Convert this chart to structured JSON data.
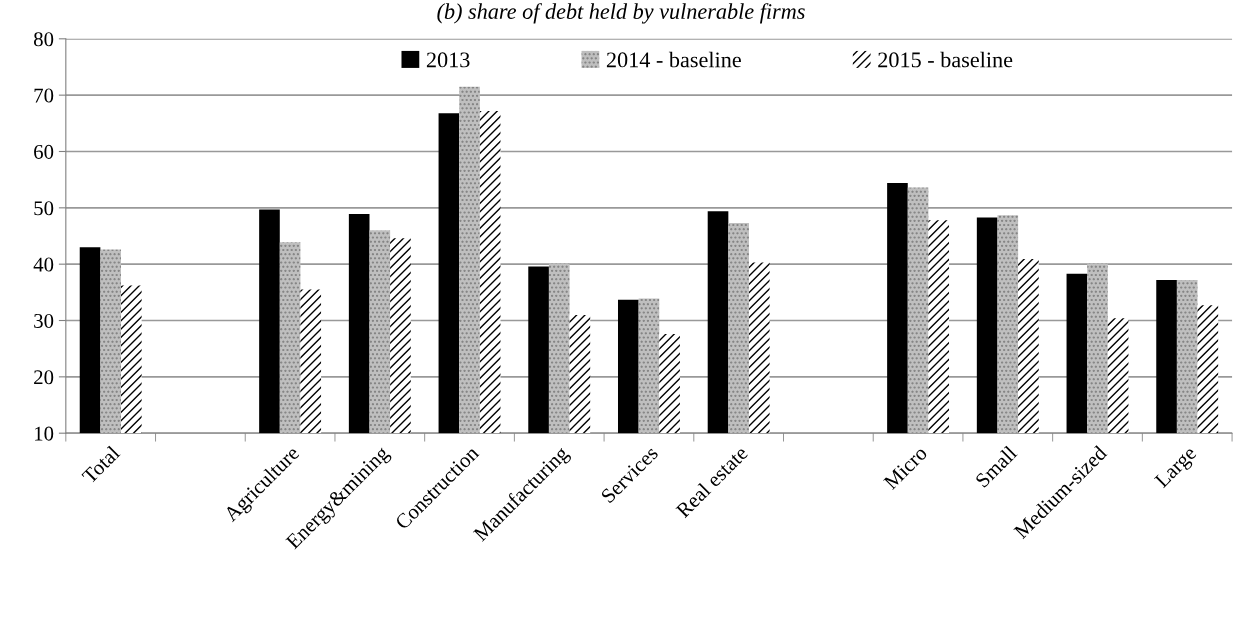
{
  "chart_data": {
    "type": "bar",
    "title": "(b) share of debt held by vulnerable firms",
    "categories": [
      "Total",
      null,
      "Agriculture",
      "Energy&mining",
      "Construction",
      "Manufacturing",
      "Services",
      "Real estate",
      null,
      "Micro",
      "Small",
      "Medium-sized",
      "Large"
    ],
    "series": [
      {
        "name": "2013",
        "color": "#000000",
        "values": [
          43.0,
          null,
          49.7,
          48.9,
          66.8,
          39.6,
          33.7,
          49.4,
          null,
          54.4,
          48.3,
          38.3,
          37.2
        ]
      },
      {
        "name": "2014 - baseline",
        "color": "#bfbfbf",
        "values": [
          42.6,
          null,
          43.9,
          46.0,
          71.5,
          40.1,
          33.9,
          47.3,
          null,
          53.6,
          48.7,
          40.1,
          37.2
        ]
      },
      {
        "name": "2015 - baseline",
        "color": "#ffffff",
        "values": [
          36.2,
          null,
          35.5,
          44.6,
          67.2,
          31.0,
          27.6,
          40.3,
          null,
          47.8,
          40.9,
          30.4,
          32.7
        ]
      }
    ],
    "ylim": [
      10,
      80
    ],
    "yticks": [
      10,
      20,
      30,
      40,
      50,
      60,
      70,
      80
    ],
    "grid": "y",
    "legend": "top"
  }
}
